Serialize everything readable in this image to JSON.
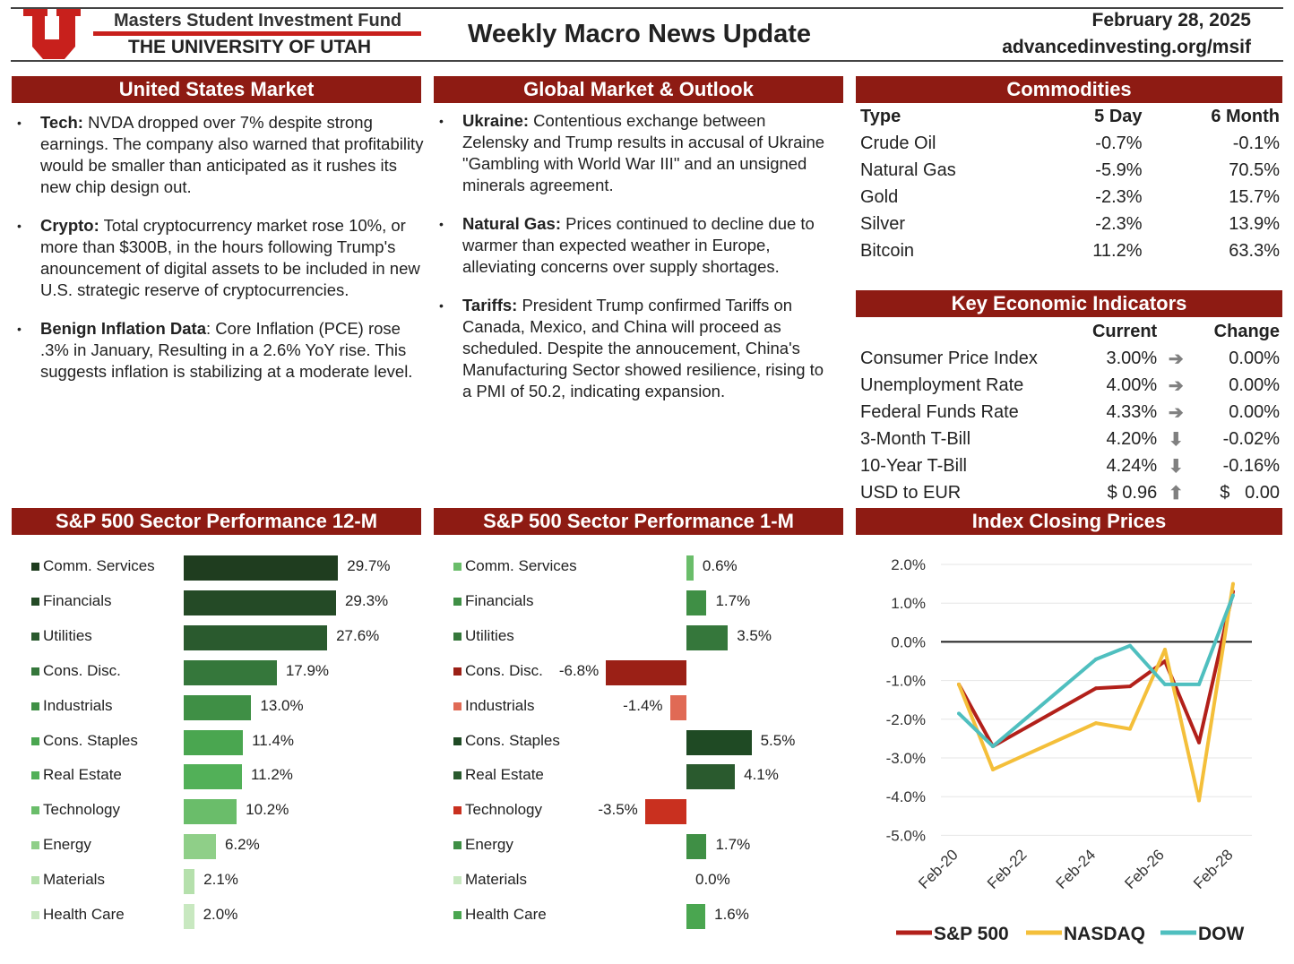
{
  "header": {
    "fund": "Masters Student Investment Fund",
    "university": "THE UNIVERSITY OF UTAH",
    "title": "Weekly Macro News Update",
    "date": "February 28, 2025",
    "url": "advancedinvesting.org/msif",
    "logo_letter": "U"
  },
  "us": {
    "title": "United States Market",
    "items": [
      {
        "label": "Tech:",
        "text": " NVDA dropped over 7% despite strong earnings. The company also warned that profitability would be smaller than anticipated as it rushes its new chip design out."
      },
      {
        "label": "Crypto:",
        "text": " Total cryptocurrency market rose 10%, or more than $300B, in the hours following Trump's anouncement of digital assets to be included in new U.S. strategic reserve of cryptocurrencies."
      },
      {
        "label": "Benign Inflation Data",
        "text": ": Core Inflation (PCE) rose .3% in January, Resulting in a 2.6% YoY rise. This suggests inflation is stabilizing at a moderate level."
      }
    ]
  },
  "global": {
    "title": "Global Market & Outlook",
    "items": [
      {
        "label": "Ukraine:",
        "text": " Contentious exchange between Zelensky and Trump results in accusal of Ukraine \"Gambling with World War III\" and an unsigned minerals agreement."
      },
      {
        "label": "Natural Gas:",
        "text": " Prices continued to decline due to warmer than expected weather in Europe, alleviating concerns over supply shortages."
      },
      {
        "label": "Tariffs:",
        "text": " President Trump confirmed Tariffs on Canada, Mexico, and China will proceed as scheduled. Despite the annoucement, China's Manufacturing Sector showed resilience, rising to a PMI of 50.2, indicating expansion."
      }
    ]
  },
  "commodities": {
    "title": "Commodities",
    "headers": [
      "Type",
      "5 Day",
      "6 Month"
    ],
    "rows": [
      [
        "Crude Oil",
        "-0.7%",
        "-0.1%"
      ],
      [
        "Natural Gas",
        "-5.9%",
        "70.5%"
      ],
      [
        "Gold",
        "-2.3%",
        "15.7%"
      ],
      [
        "Silver",
        "-2.3%",
        "13.9%"
      ],
      [
        "Bitcoin",
        "11.2%",
        "63.3%"
      ]
    ]
  },
  "indicators": {
    "title": "Key Economic Indicators",
    "headers": [
      "Current",
      "Change"
    ],
    "rows": [
      {
        "name": "Consumer Price Index",
        "current": "3.00%",
        "arrow": "➔",
        "change": "0.00%"
      },
      {
        "name": "Unemployment Rate",
        "current": "4.00%",
        "arrow": "➔",
        "change": "0.00%"
      },
      {
        "name": "Federal Funds Rate",
        "current": "4.33%",
        "arrow": "➔",
        "change": "0.00%"
      },
      {
        "name": "3-Month T-Bill",
        "current": "4.20%",
        "arrow": "⬇",
        "change": "-0.02%"
      },
      {
        "name": "10-Year T-Bill",
        "current": "4.24%",
        "arrow": "⬇",
        "change": "-0.16%"
      },
      {
        "name": "USD to EUR",
        "current": "$ 0.96",
        "arrow": "⬆",
        "change": "$   0.00"
      }
    ]
  },
  "chart_data": [
    {
      "type": "bar",
      "title": "S&P 500 Sector Performance 12-M",
      "categories": [
        "Comm. Services",
        "Financials",
        "Utilities",
        "Cons. Disc.",
        "Industrials",
        "Cons. Staples",
        "Real Estate",
        "Technology",
        "Energy",
        "Materials",
        "Health Care"
      ],
      "values": [
        29.7,
        29.3,
        27.6,
        17.9,
        13.0,
        11.4,
        11.2,
        10.2,
        6.2,
        2.1,
        2.0
      ],
      "labels": [
        "29.7%",
        "29.3%",
        "27.6%",
        "17.9%",
        "13.0%",
        "11.4%",
        "11.2%",
        "10.2%",
        "6.2%",
        "2.1%",
        "2.0%"
      ],
      "colors": [
        "#1f3d1f",
        "#244a26",
        "#2a5a2e",
        "#35773b",
        "#3f8f45",
        "#4aa650",
        "#52b058",
        "#6abd6a",
        "#8fcf88",
        "#b5e0ac",
        "#c8e8c0"
      ]
    },
    {
      "type": "bar",
      "title": "S&P 500 Sector Performance 1-M",
      "categories": [
        "Comm. Services",
        "Financials",
        "Utilities",
        "Cons. Disc.",
        "Industrials",
        "Cons. Staples",
        "Real Estate",
        "Technology",
        "Energy",
        "Materials",
        "Health Care"
      ],
      "values": [
        0.6,
        1.7,
        3.5,
        -6.8,
        -1.4,
        5.5,
        4.1,
        -3.5,
        1.7,
        0.0,
        1.6
      ],
      "labels": [
        "0.6%",
        "1.7%",
        "3.5%",
        "-6.8%",
        "-1.4%",
        "5.5%",
        "4.1%",
        "-3.5%",
        "1.7%",
        "0.0%",
        "1.6%"
      ],
      "colors": [
        "#6abd6a",
        "#3f8f45",
        "#35773b",
        "#9b2016",
        "#e06a55",
        "#1f4a24",
        "#2a5a2e",
        "#c9301f",
        "#3f8f45",
        "#c8e8c0",
        "#4aa650"
      ]
    },
    {
      "type": "line",
      "title": "Index Closing Prices",
      "x": [
        "Feb-20",
        "Feb-21",
        "Feb-24",
        "Feb-25",
        "Feb-26",
        "Feb-27",
        "Feb-28"
      ],
      "x_ticks": [
        "Feb-20",
        "Feb-22",
        "Feb-24",
        "Feb-26",
        "Feb-28"
      ],
      "y_ticks": [
        "2.0%",
        "1.0%",
        "0.0%",
        "-1.0%",
        "-2.0%",
        "-3.0%",
        "-4.0%",
        "-5.0%"
      ],
      "ylim": [
        -5,
        2
      ],
      "series": [
        {
          "name": "S&P 500",
          "color": "#b2201a",
          "values": [
            -1.1,
            -2.7,
            -1.2,
            -1.15,
            -0.5,
            -2.6,
            1.3
          ]
        },
        {
          "name": "NASDAQ",
          "color": "#f4bf3a",
          "values": [
            -1.1,
            -3.3,
            -2.1,
            -2.25,
            -0.2,
            -4.1,
            1.5
          ]
        },
        {
          "name": "DOW",
          "color": "#4fbfbf",
          "values": [
            -1.85,
            -2.7,
            -0.45,
            -0.1,
            -1.1,
            -1.1,
            1.2
          ]
        }
      ]
    }
  ]
}
